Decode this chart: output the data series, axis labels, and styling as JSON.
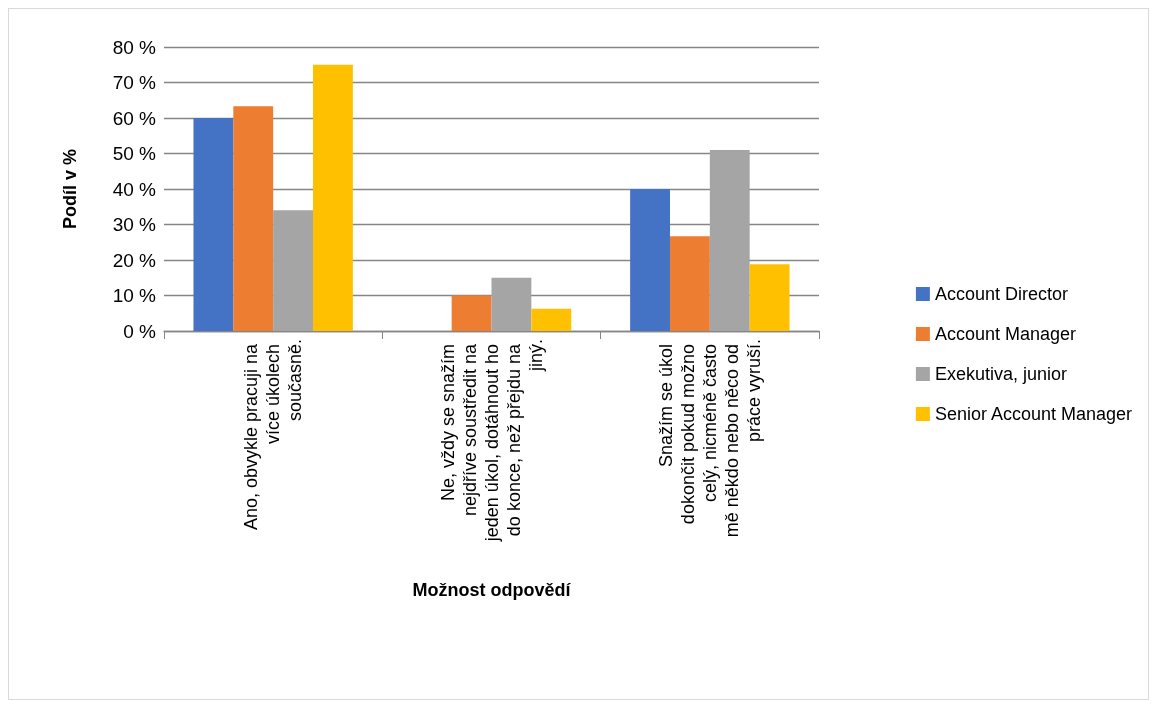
{
  "chart_data": {
    "type": "bar",
    "xlabel": "Možnost odpovědí",
    "ylabel": "Podíl v %",
    "categories": [
      "Ano, obvykle pracuji na více úkolech současně.",
      "Ne, vždy se snažím nejdříve soustředit na jeden úkol, dotáhnout ho do konce, než přejdu na jiný.",
      "Snažím se úkol dokončit pokud možno celý, nicméně často mě někdo nebo něco od práce vyruší."
    ],
    "series": [
      {
        "name": "Account Director",
        "color": "#4472c4",
        "values": [
          60,
          0,
          40
        ]
      },
      {
        "name": "Account Manager",
        "color": "#ed7d31",
        "values": [
          63.3,
          10,
          26.7
        ]
      },
      {
        "name": "Exekutiva, junior",
        "color": "#a5a5a5",
        "values": [
          34,
          15,
          51
        ]
      },
      {
        "name": "Senior Account Manager",
        "color": "#ffc000",
        "values": [
          75,
          6.3,
          18.8
        ]
      }
    ],
    "ylim": [
      0,
      80
    ],
    "yticks": [
      {
        "value": 0,
        "label": "0 %"
      },
      {
        "value": 10,
        "label": "10 %"
      },
      {
        "value": 20,
        "label": "20 %"
      },
      {
        "value": 30,
        "label": "30 %"
      },
      {
        "value": 40,
        "label": "40 %"
      },
      {
        "value": 50,
        "label": "50 %"
      },
      {
        "value": 60,
        "label": "60 %"
      },
      {
        "value": 70,
        "label": "70 %"
      },
      {
        "value": 80,
        "label": "80 %"
      }
    ],
    "grid": "y",
    "legend": "right"
  }
}
